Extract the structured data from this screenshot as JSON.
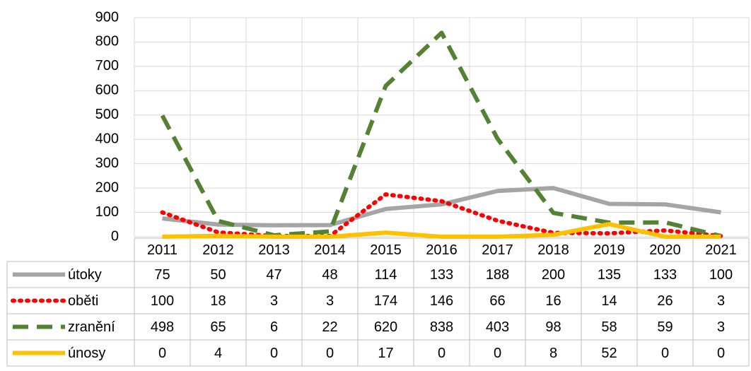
{
  "chart_data": {
    "type": "line",
    "categories": [
      "2011",
      "2012",
      "2013",
      "2014",
      "2015",
      "2016",
      "2017",
      "2018",
      "2019",
      "2020",
      "2021"
    ],
    "series": [
      {
        "name": "útoky",
        "color": "#a5a5a5",
        "style": "solid",
        "values": [
          75,
          50,
          47,
          48,
          114,
          133,
          188,
          200,
          135,
          133,
          100
        ]
      },
      {
        "name": "oběti",
        "color": "#ff0000",
        "style": "dotted",
        "values": [
          100,
          18,
          3,
          3,
          174,
          146,
          66,
          16,
          14,
          26,
          3
        ]
      },
      {
        "name": "zranění",
        "color": "#548235",
        "style": "dashed",
        "values": [
          498,
          65,
          6,
          22,
          620,
          838,
          403,
          98,
          58,
          59,
          3
        ]
      },
      {
        "name": "únosy",
        "color": "#ffc000",
        "style": "solid",
        "values": [
          0,
          4,
          0,
          0,
          17,
          0,
          0,
          8,
          52,
          0,
          0
        ]
      }
    ],
    "ylim": [
      0,
      900
    ],
    "yticks": [
      0,
      100,
      200,
      300,
      400,
      500,
      600,
      700,
      800,
      900
    ],
    "grid": true,
    "data_table": true
  }
}
